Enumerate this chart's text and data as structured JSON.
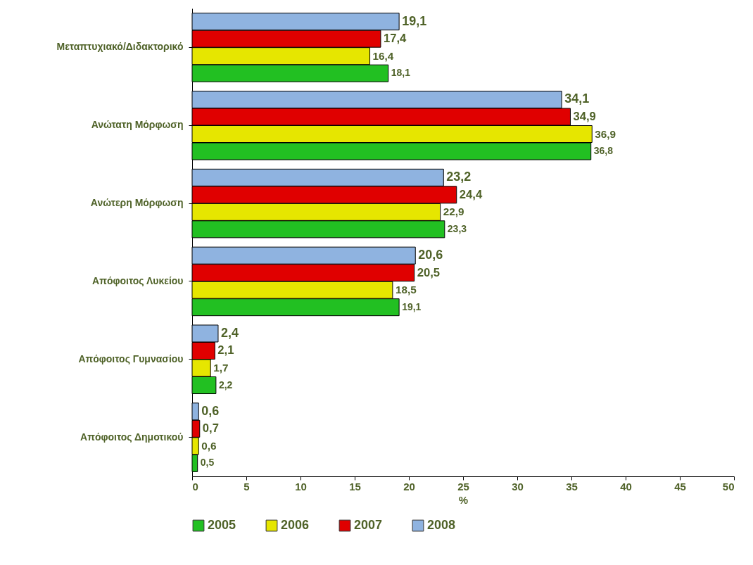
{
  "chart_data": {
    "type": "bar",
    "orientation": "horizontal",
    "categories": [
      "Μεταπτυχιακό/Διδακτορικό",
      "Ανώτατη Μόρφωση",
      "Ανώτερη Μόρφωση",
      "Απόφοιτος Λυκείου",
      "Απόφοιτος Γυμνασίου",
      "Απόφοιτος Δημοτικού"
    ],
    "series": [
      {
        "name": "2005",
        "color": "#22c022",
        "values": [
          18.1,
          36.8,
          23.3,
          19.1,
          2.2,
          0.5
        ],
        "value_labels": [
          "18,1",
          "36,8",
          "23,3",
          "19,1",
          "2,2",
          "0,5"
        ]
      },
      {
        "name": "2006",
        "color": "#e6e600",
        "values": [
          16.4,
          36.9,
          22.9,
          18.5,
          1.7,
          0.6
        ],
        "value_labels": [
          "16,4",
          "36,9",
          "22,9",
          "18,5",
          "1,7",
          "0,6"
        ]
      },
      {
        "name": "2007",
        "color": "#e00000",
        "values": [
          17.4,
          34.9,
          24.4,
          20.5,
          2.1,
          0.7
        ],
        "value_labels": [
          "17,4",
          "34,9",
          "24,4",
          "20,5",
          "2,1",
          "0,7"
        ]
      },
      {
        "name": "2008",
        "color": "#8fb3e0",
        "values": [
          19.1,
          34.1,
          23.2,
          20.6,
          2.4,
          0.6
        ],
        "value_labels": [
          "19,1",
          "34,1",
          "23,2",
          "20,6",
          "2,4",
          "0,6"
        ]
      }
    ],
    "xlabel": "%",
    "xlim": [
      0,
      50
    ],
    "xticks": [
      0,
      5,
      10,
      15,
      20,
      25,
      30,
      35,
      40,
      45,
      50
    ],
    "grid": false,
    "legend": "bottom"
  }
}
